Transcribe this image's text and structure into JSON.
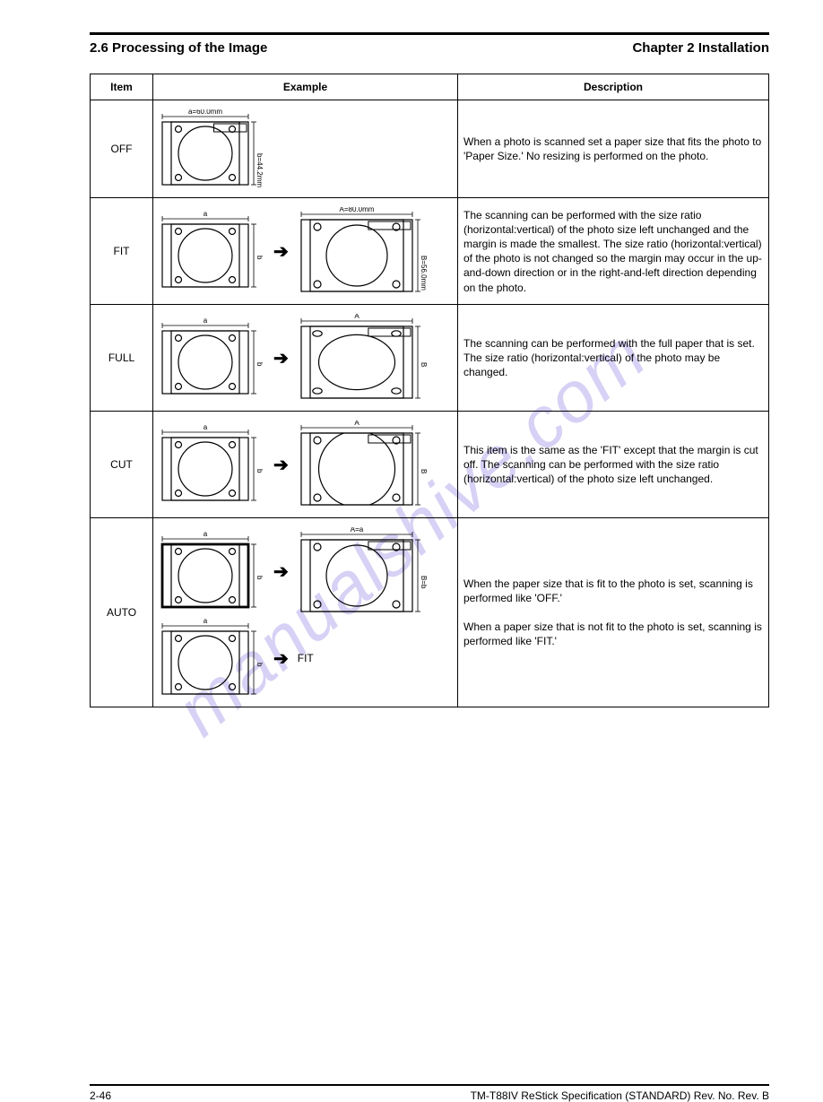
{
  "header": {
    "section": "2.6 Processing of the Image",
    "chapter": "Chapter 2 Installation"
  },
  "table": {
    "head": [
      "Item",
      "Example",
      "Description"
    ],
    "rows": [
      {
        "item": "OFF",
        "desc": "When a photo is scanned set a paper size that fits the photo to 'Paper Size.' No resizing is performed on the photo."
      },
      {
        "item": "FIT",
        "desc": "The scanning can be performed with the size ratio (horizontal:vertical) of the photo size left unchanged and the margin is made the smallest. The size ratio (horizontal:vertical) of the photo is not changed so the margin may occur in the up-and-down direction or in the right-and-left direction depending on the photo."
      },
      {
        "item": "FULL",
        "desc": "The scanning can be performed with the full paper that is set. The size ratio (horizontal:vertical) of the photo may be changed."
      },
      {
        "item": "CUT",
        "desc": "This item is the same as the 'FIT' except that the margin is cut off. The scanning can be performed with the size ratio (horizontal:vertical) of the photo size left unchanged."
      },
      {
        "item": "AUTO",
        "desc_html": "When the paper size that is fit to the photo is set, scanning is performed like 'OFF.'<br><br>When a paper size that is not fit to the photo is set, scanning is performed like 'FIT.'"
      }
    ],
    "dims": {
      "a": "60.0mm",
      "b": "44.2mm",
      "A": "80.0mm",
      "B": "56.0mm"
    }
  },
  "footer": {
    "left": "2-46",
    "right": "TM-T88IV ReStick Specification (STANDARD) Rev. No. Rev. B"
  },
  "watermark": "manualshive.com",
  "svg": {
    "stroke": "#000",
    "stroke_width": 1.2,
    "label_fontsize": 8,
    "small": {
      "w": 104,
      "h": 88,
      "outer": [
        4,
        14,
        96,
        70
      ],
      "face": [
        14,
        14,
        76,
        70
      ],
      "lens_r": 30,
      "holes_r": 3.5
    },
    "large": {
      "w": 132,
      "h": 98,
      "outer": [
        4,
        14,
        124,
        80
      ],
      "face": [
        14,
        14,
        104,
        80
      ],
      "lens_r": 34,
      "holes_r": 4
    }
  }
}
